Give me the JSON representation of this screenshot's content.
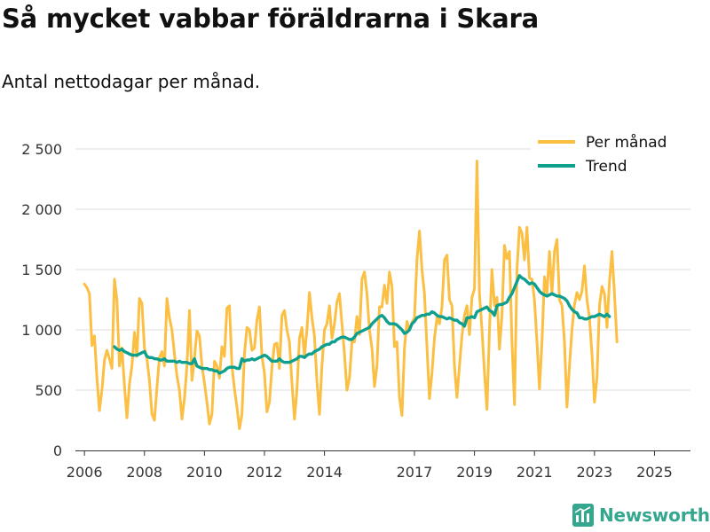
{
  "title": "Så mycket vabbar föräldrarna i Skara",
  "subtitle": "Antal nettodagar per månad.",
  "brand": "Newsworthy",
  "colors": {
    "per_month": "#fbbf44",
    "trend": "#0e9f8e",
    "grid": "#dddddd",
    "axis_text": "#333333",
    "brand": "#36a78f"
  },
  "chart_data": {
    "type": "line",
    "title": "Så mycket vabbar föräldrarna i Skara",
    "subtitle": "Antal nettodagar per månad.",
    "xlabel": "",
    "ylabel": "",
    "xlim": [
      2005.7,
      2026.2
    ],
    "ylim": [
      0,
      2500
    ],
    "yticks": [
      0,
      500,
      1000,
      1500,
      2000,
      2500
    ],
    "ytick_labels": [
      "0",
      "500",
      "1 000",
      "1 500",
      "2 000",
      "2 500"
    ],
    "xticks": [
      2006,
      2008,
      2010,
      2012,
      2014,
      2017,
      2019,
      2021,
      2023,
      2025
    ],
    "xtick_labels": [
      "2006",
      "2008",
      "2010",
      "2012",
      "2014",
      "2017",
      "2019",
      "2021",
      "2023",
      "2025"
    ],
    "grid": true,
    "legend_position": "top-right",
    "series": [
      {
        "name": "Per månad",
        "color": "#fbbf44",
        "start": 2006.0,
        "step_months": 1,
        "values": [
          1380,
          1350,
          1300,
          870,
          950,
          600,
          330,
          500,
          750,
          830,
          760,
          680,
          1420,
          1250,
          700,
          850,
          540,
          270,
          550,
          700,
          980,
          780,
          1260,
          1220,
          850,
          760,
          580,
          300,
          250,
          520,
          770,
          820,
          700,
          1260,
          1100,
          1000,
          800,
          620,
          500,
          260,
          430,
          700,
          1160,
          580,
          760,
          990,
          950,
          700,
          560,
          400,
          220,
          300,
          740,
          700,
          600,
          860,
          780,
          1180,
          1200,
          700,
          510,
          360,
          180,
          300,
          800,
          1020,
          1000,
          830,
          850,
          1080,
          1190,
          780,
          640,
          320,
          400,
          690,
          880,
          890,
          680,
          1120,
          1160,
          1000,
          900,
          560,
          260,
          500,
          930,
          1020,
          780,
          1000,
          1310,
          1100,
          950,
          570,
          300,
          700,
          1000,
          1050,
          1200,
          930,
          1050,
          1230,
          1300,
          1050,
          800,
          500,
          600,
          900,
          900,
          1110,
          960,
          1420,
          1480,
          1300,
          1000,
          850,
          530,
          700,
          1190,
          1190,
          1370,
          1220,
          1480,
          1360,
          860,
          900,
          440,
          290,
          850,
          1070,
          1000,
          1060,
          1100,
          1580,
          1820,
          1500,
          1300,
          860,
          430,
          640,
          930,
          1100,
          1050,
          1190,
          1580,
          1620,
          1250,
          1200,
          700,
          440,
          700,
          950,
          1120,
          1200,
          960,
          1270,
          1340,
          2400,
          1300,
          1000,
          650,
          340,
          1000,
          1500,
          1200,
          1270,
          840,
          1120,
          1700,
          1590,
          1650,
          900,
          380,
          1500,
          1850,
          1800,
          1580,
          1850,
          1430,
          1420,
          1250,
          900,
          510,
          900,
          1440,
          1300,
          1650,
          1300,
          1650,
          1750,
          1250,
          1200,
          900,
          360,
          700,
          1000,
          1210,
          1310,
          1250,
          1320,
          1530,
          1250,
          1100,
          800,
          400,
          600,
          1200,
          1360,
          1300,
          1020,
          1400,
          1650,
          1300,
          900
        ]
      },
      {
        "name": "Trend",
        "color": "#0e9f8e",
        "start": 2007.0,
        "step_months": 1,
        "values": [
          860,
          840,
          830,
          840,
          820,
          810,
          800,
          790,
          790,
          790,
          800,
          810,
          820,
          780,
          770,
          770,
          760,
          760,
          750,
          750,
          760,
          740,
          740,
          740,
          740,
          730,
          740,
          730,
          730,
          730,
          720,
          720,
          760,
          700,
          690,
          680,
          680,
          680,
          670,
          670,
          660,
          660,
          640,
          650,
          660,
          680,
          690,
          690,
          690,
          680,
          680,
          760,
          740,
          750,
          750,
          760,
          750,
          760,
          770,
          780,
          790,
          780,
          760,
          740,
          740,
          740,
          760,
          740,
          730,
          730,
          730,
          740,
          750,
          760,
          780,
          780,
          770,
          790,
          800,
          800,
          820,
          830,
          840,
          860,
          870,
          880,
          880,
          900,
          900,
          920,
          930,
          940,
          940,
          930,
          920,
          920,
          940,
          970,
          980,
          990,
          1000,
          1010,
          1020,
          1050,
          1070,
          1090,
          1110,
          1120,
          1100,
          1070,
          1050,
          1050,
          1050,
          1040,
          1020,
          1000,
          970,
          980,
          1000,
          1050,
          1070,
          1100,
          1110,
          1120,
          1120,
          1130,
          1130,
          1150,
          1140,
          1120,
          1110,
          1110,
          1100,
          1090,
          1100,
          1090,
          1080,
          1080,
          1060,
          1050,
          1030,
          1100,
          1100,
          1110,
          1100,
          1150,
          1160,
          1170,
          1180,
          1190,
          1160,
          1150,
          1120,
          1200,
          1210,
          1210,
          1220,
          1230,
          1270,
          1300,
          1350,
          1400,
          1450,
          1430,
          1420,
          1400,
          1380,
          1390,
          1380,
          1350,
          1320,
          1300,
          1290,
          1280,
          1290,
          1300,
          1290,
          1280,
          1280,
          1270,
          1260,
          1240,
          1200,
          1170,
          1150,
          1140,
          1100,
          1100,
          1090,
          1090,
          1100,
          1110,
          1110,
          1120,
          1130,
          1120,
          1110,
          1130,
          1110
        ]
      }
    ]
  }
}
